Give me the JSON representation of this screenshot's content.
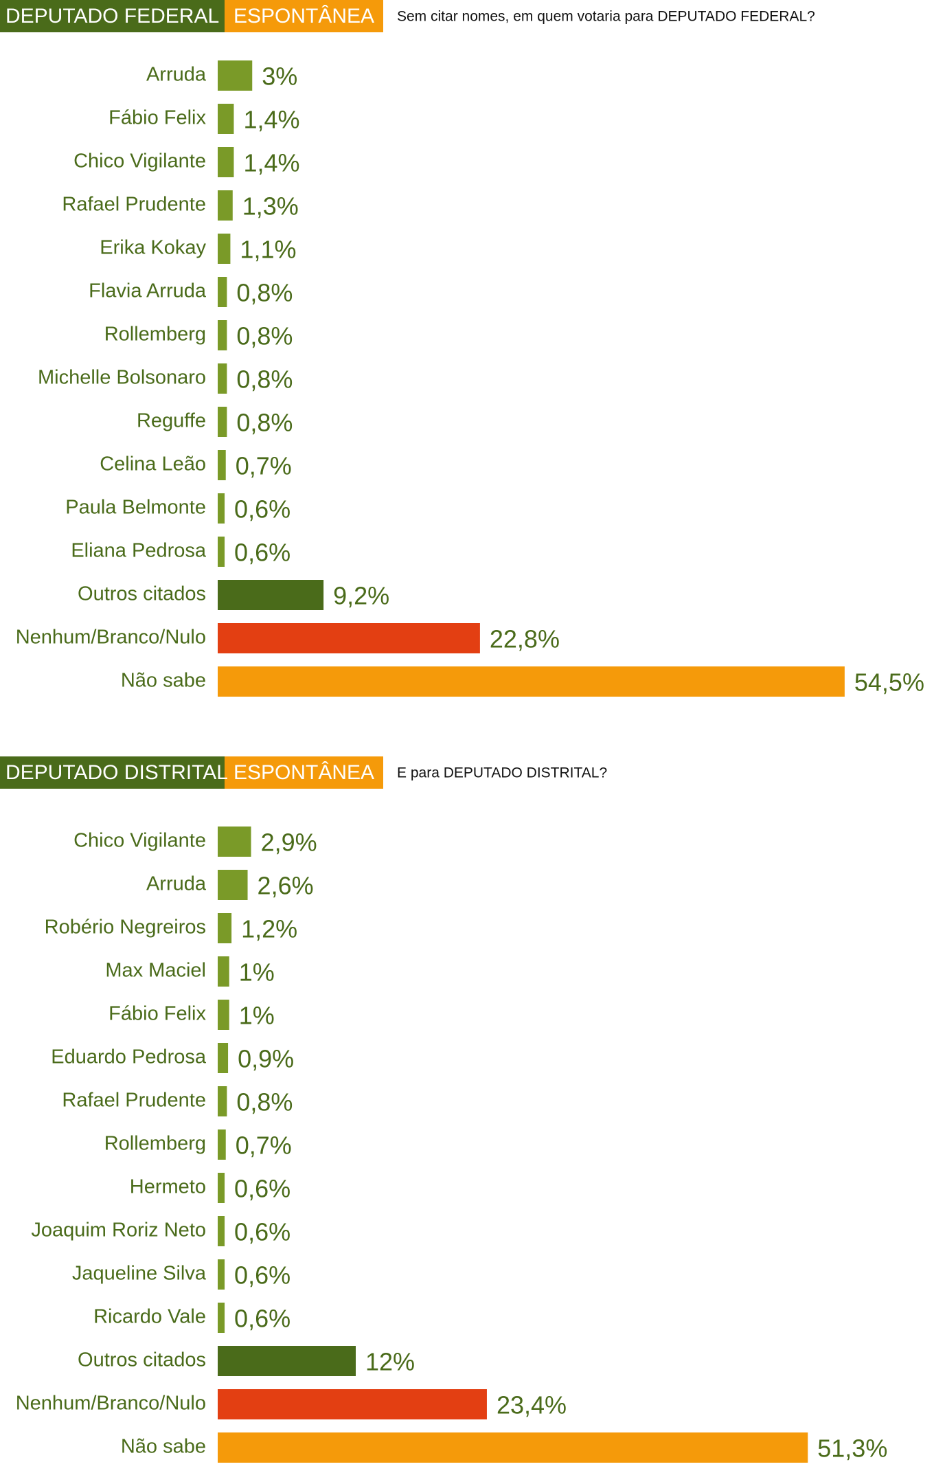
{
  "chart_data": [
    {
      "type": "bar",
      "title": "DEPUTADO FEDERAL",
      "tag": "ESPONTÂNEA",
      "question": "Sem citar nomes, em quem votaria para DEPUTADO FEDERAL?",
      "categories": [
        "Arruda",
        "Fábio Felix",
        "Chico Vigilante",
        "Rafael Prudente",
        "Erika Kokay",
        "Flavia Arruda",
        "Rollemberg",
        "Michelle Bolsonaro",
        "Reguffe",
        "Celina Leão",
        "Paula Belmonte",
        "Eliana Pedrosa",
        "Outros citados",
        "Nenhum/Branco/Nulo",
        "Não sabe"
      ],
      "values": [
        3,
        1.4,
        1.4,
        1.3,
        1.1,
        0.8,
        0.8,
        0.8,
        0.8,
        0.7,
        0.6,
        0.6,
        9.2,
        22.8,
        54.5
      ],
      "value_labels": [
        "3%",
        "1,4%",
        "1,4%",
        "1,3%",
        "1,1%",
        "0,8%",
        "0,8%",
        "0,8%",
        "0,8%",
        "0,7%",
        "0,6%",
        "0,6%",
        "9,2%",
        "22,8%",
        "54,5%"
      ],
      "colors": [
        "#7a9a28",
        "#7a9a28",
        "#7a9a28",
        "#7a9a28",
        "#7a9a28",
        "#7a9a28",
        "#7a9a28",
        "#7a9a28",
        "#7a9a28",
        "#7a9a28",
        "#7a9a28",
        "#7a9a28",
        "#4a6b1a",
        "#e33f12",
        "#f59a0a"
      ]
    },
    {
      "type": "bar",
      "title": "DEPUTADO DISTRITAL",
      "tag": "ESPONTÂNEA",
      "question": "E para DEPUTADO DISTRITAL?",
      "categories": [
        "Chico Vigilante",
        "Arruda",
        "Robério Negreiros",
        "Max Maciel",
        "Fábio Felix",
        "Eduardo Pedrosa",
        "Rafael Prudente",
        "Rollemberg",
        "Hermeto",
        "Joaquim Roriz Neto",
        "Jaqueline Silva",
        "Ricardo Vale",
        "Outros citados",
        "Nenhum/Branco/Nulo",
        "Não sabe"
      ],
      "values": [
        2.9,
        2.6,
        1.2,
        1,
        1,
        0.9,
        0.8,
        0.7,
        0.6,
        0.6,
        0.6,
        0.6,
        12,
        23.4,
        51.3
      ],
      "value_labels": [
        "2,9%",
        "2,6%",
        "1,2%",
        "1%",
        "1%",
        "0,9%",
        "0,8%",
        "0,7%",
        "0,6%",
        "0,6%",
        "0,6%",
        "0,6%",
        "12%",
        "23,4%",
        "51,3%"
      ],
      "colors": [
        "#7a9a28",
        "#7a9a28",
        "#7a9a28",
        "#7a9a28",
        "#7a9a28",
        "#7a9a28",
        "#7a9a28",
        "#7a9a28",
        "#7a9a28",
        "#7a9a28",
        "#7a9a28",
        "#7a9a28",
        "#4a6b1a",
        "#e33f12",
        "#f59a0a"
      ]
    }
  ]
}
